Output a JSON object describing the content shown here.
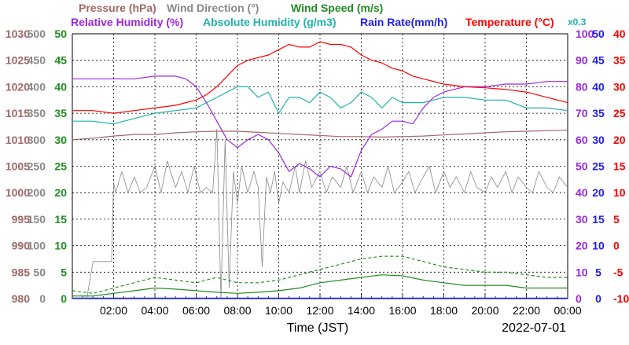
{
  "chart_data": {
    "type": "line",
    "legend_row1": [
      {
        "name": "Pressure (hPa)",
        "color": "#a06868"
      },
      {
        "name": "Wind Direction (°)",
        "color": "#888888"
      },
      {
        "name": "Wind Speed (m/s)",
        "color": "#228b22"
      }
    ],
    "legend_row2": [
      {
        "name": "Relative Humidity (%)",
        "color": "#9a28e0"
      },
      {
        "name": "Absolute Humidity (g/m3)",
        "color": "#20b2aa"
      },
      {
        "name": "Rain Rate(mm/h)",
        "color": "#1e1ee6"
      },
      {
        "name": "Temperature (°C)",
        "color": "#ff0000"
      }
    ],
    "scale_note": "x0.3",
    "xlabel": "Time (JST)",
    "date": "2022-07-01",
    "x_ticks": [
      "02:00",
      "04:00",
      "06:00",
      "08:00",
      "10:00",
      "12:00",
      "14:00",
      "16:00",
      "18:00",
      "20:00",
      "22:00",
      "00:00"
    ],
    "xlim": [
      0,
      24
    ],
    "axes": {
      "pressure": {
        "color": "#a06868",
        "range": [
          980,
          1030
        ],
        "ticks": [
          "1030",
          "1025",
          "1020",
          "1015",
          "1010",
          "1005",
          "1000",
          "995",
          "990",
          "985",
          "980"
        ]
      },
      "direction": {
        "color": "#888888",
        "range": [
          0,
          500
        ],
        "ticks": [
          "500",
          "450",
          "400",
          "350",
          "300",
          "250",
          "200",
          "150",
          "100",
          "50",
          "0"
        ]
      },
      "speed": {
        "color": "#228b22",
        "range": [
          0,
          50
        ],
        "ticks": [
          "50",
          "45",
          "40",
          "35",
          "30",
          "25",
          "20",
          "15",
          "10",
          "5",
          "0"
        ]
      },
      "humidity": {
        "color": "#9a28e0",
        "range": [
          0,
          100
        ],
        "ticks": [
          "100",
          "90",
          "80",
          "70",
          "60",
          "50",
          "40",
          "30",
          "20",
          "10",
          "0"
        ]
      },
      "rain": {
        "color": "#1e1ee6",
        "range": [
          0,
          50
        ],
        "ticks": [
          "50",
          "45",
          "40",
          "35",
          "30",
          "25",
          "20",
          "15",
          "10",
          "5",
          "0"
        ]
      },
      "temperature": {
        "color": "#ff0000",
        "range": [
          -10,
          40
        ],
        "ticks": [
          "40",
          "35",
          "30",
          "25",
          "20",
          "15",
          "10",
          "5",
          "0",
          "-5",
          "-10"
        ]
      }
    },
    "series": [
      {
        "name": "Pressure (hPa)",
        "color": "#a06868",
        "axis": "pressure",
        "x": [
          0,
          1,
          2,
          3,
          4,
          5,
          6,
          7,
          8,
          9,
          10,
          11,
          12,
          13,
          14,
          15,
          16,
          17,
          18,
          19,
          20,
          21,
          22,
          23,
          24
        ],
        "y": [
          1010.0,
          1010.3,
          1010.7,
          1011.0,
          1011.0,
          1011.3,
          1011.5,
          1011.6,
          1011.6,
          1011.4,
          1011.2,
          1011.0,
          1010.8,
          1010.6,
          1010.6,
          1010.5,
          1010.6,
          1010.7,
          1010.9,
          1011.1,
          1011.3,
          1011.5,
          1011.6,
          1011.7,
          1011.8
        ]
      },
      {
        "name": "Wind Direction (°)",
        "color": "#888888",
        "axis": "direction",
        "x": [
          0,
          0.4,
          0.7,
          1.0,
          1.5,
          1.9,
          2.0,
          2.1,
          2.4,
          2.7,
          3.0,
          3.3,
          3.6,
          4.0,
          4.3,
          4.6,
          5.0,
          5.3,
          5.6,
          5.9,
          6.2,
          6.5,
          6.8,
          7.0,
          7.2,
          7.4,
          7.6,
          7.8,
          8.0,
          8.2,
          8.5,
          8.8,
          9.0,
          9.2,
          9.4,
          9.6,
          9.8,
          10.0,
          10.2,
          10.5,
          10.8,
          11.0,
          11.3,
          11.6,
          12.0,
          12.3,
          12.6,
          13.0,
          13.3,
          13.6,
          14.0,
          14.3,
          14.6,
          15.0,
          15.3,
          15.6,
          16.0,
          16.3,
          16.6,
          17.0,
          17.3,
          17.6,
          18.0,
          18.3,
          18.6,
          19.0,
          19.3,
          19.6,
          20.0,
          20.3,
          20.6,
          21.0,
          21.3,
          21.6,
          22.0,
          22.3,
          22.6,
          23.0,
          23.3,
          23.6,
          24.0
        ],
        "y": [
          0,
          0,
          0,
          70,
          70,
          70,
          220,
          200,
          240,
          200,
          230,
          200,
          210,
          250,
          200,
          260,
          210,
          240,
          200,
          250,
          200,
          210,
          200,
          320,
          0,
          300,
          20,
          240,
          180,
          250,
          200,
          240,
          210,
          60,
          230,
          200,
          240,
          180,
          220,
          200,
          250,
          200,
          260,
          210,
          240,
          200,
          230,
          210,
          250,
          200,
          240,
          200,
          230,
          210,
          250,
          200,
          220,
          240,
          200,
          230,
          250,
          200,
          240,
          210,
          230,
          200,
          240,
          210,
          200,
          230,
          210,
          240,
          200,
          230,
          210,
          200,
          240,
          210,
          200,
          230,
          210
        ]
      },
      {
        "name": "Wind Speed (m/s) max",
        "color": "#228b22",
        "axis": "speed",
        "dash": true,
        "x": [
          0,
          1,
          2,
          3,
          4,
          5,
          6,
          7,
          8,
          9,
          10,
          11,
          12,
          13,
          14,
          15,
          16,
          17,
          18,
          19,
          20,
          21,
          22,
          23,
          24
        ],
        "y": [
          1.5,
          1.0,
          2.0,
          3.0,
          4.0,
          3.5,
          3.0,
          4.0,
          3.0,
          3.0,
          3.5,
          4.5,
          5.5,
          6.5,
          7.5,
          8.0,
          8.0,
          7.0,
          6.0,
          5.5,
          5.0,
          5.0,
          4.5,
          4.0,
          4.0
        ]
      },
      {
        "name": "Wind Speed (m/s)",
        "color": "#228b22",
        "axis": "speed",
        "x": [
          0,
          1,
          2,
          3,
          4,
          5,
          6,
          7,
          8,
          9,
          10,
          11,
          12,
          13,
          14,
          15,
          16,
          17,
          18,
          19,
          20,
          21,
          22,
          23,
          24
        ],
        "y": [
          0.5,
          0.5,
          1.0,
          1.5,
          2.0,
          1.8,
          1.5,
          1.2,
          1.0,
          1.2,
          1.5,
          2.0,
          3.0,
          3.5,
          4.0,
          4.5,
          4.3,
          3.5,
          3.0,
          2.5,
          2.5,
          2.5,
          2.0,
          2.0,
          2.0
        ]
      },
      {
        "name": "Relative Humidity (%)",
        "color": "#9a28e0",
        "axis": "humidity",
        "x": [
          0,
          1,
          2,
          3,
          4,
          5,
          5.5,
          6,
          6.5,
          7,
          7.5,
          8,
          8.5,
          9,
          9.5,
          10,
          10.5,
          11,
          11.5,
          12,
          12.5,
          13,
          13.5,
          14,
          14.5,
          15,
          15.5,
          16,
          16.5,
          17,
          17.5,
          18,
          19,
          20,
          21,
          22,
          23,
          24
        ],
        "y": [
          83,
          83,
          83,
          83,
          84,
          84,
          83,
          80,
          74,
          67,
          60,
          57,
          60,
          62,
          60,
          55,
          48,
          51,
          49,
          46,
          50,
          49,
          46,
          56,
          62,
          64,
          67,
          67,
          66,
          72,
          76,
          78,
          80,
          80,
          81,
          81,
          82,
          82
        ]
      },
      {
        "name": "Absolute Humidity (g/m3)",
        "color": "#20b2aa",
        "axis": "speed",
        "x": [
          0,
          1,
          2,
          3,
          4,
          5,
          6,
          6.5,
          7,
          7.5,
          8,
          8.5,
          9,
          9.5,
          10,
          10.5,
          11,
          11.5,
          12,
          12.5,
          13,
          13.5,
          14,
          14.5,
          15,
          15.5,
          16,
          16.5,
          17,
          18,
          19,
          20,
          21,
          22,
          23,
          24
        ],
        "y": [
          33.5,
          33.5,
          33,
          34,
          35,
          35.5,
          36,
          37,
          38,
          39,
          40,
          40,
          38,
          39,
          35,
          38,
          38,
          37,
          39,
          38,
          36,
          37,
          39,
          38,
          36,
          38,
          37,
          37,
          37,
          38,
          38,
          37.5,
          37.5,
          36,
          36,
          35.5
        ]
      },
      {
        "name": "Temperature (°C)",
        "color": "#ff0000",
        "axis": "temperature",
        "x": [
          0,
          1,
          2,
          3,
          4,
          5,
          6,
          6.5,
          7,
          7.5,
          8,
          8.5,
          9,
          9.5,
          10,
          10.5,
          11,
          11.5,
          12,
          12.5,
          13,
          13.5,
          14,
          14.5,
          15,
          15.5,
          16,
          16.5,
          17,
          18,
          19,
          20,
          21,
          22,
          23,
          24
        ],
        "y": [
          25.5,
          25.5,
          25,
          25.5,
          26,
          26.5,
          27.5,
          28.5,
          30,
          32,
          34,
          35,
          35.5,
          36,
          37,
          38,
          37.5,
          37.5,
          38.5,
          38,
          38,
          37.5,
          36,
          35,
          34.5,
          33.5,
          33,
          32,
          31.5,
          30.5,
          30,
          29.8,
          29.5,
          29,
          28,
          27
        ]
      }
    ]
  }
}
